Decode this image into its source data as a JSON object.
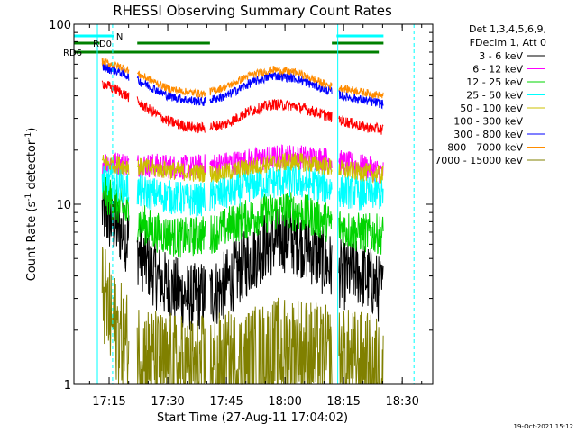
{
  "chart_data": {
    "type": "line",
    "title": "RHESSI Observing Summary Count Rates",
    "ylabel": "Count Rate (s",
    "ylabel_sup": "-1",
    "ylabel_tail": " detector",
    "ylabel_close": ")",
    "xlabel": "Start Time (27-Aug-11 17:04:02)",
    "y_scale": "log",
    "ylim": [
      1,
      100
    ],
    "xlim": [
      17.1,
      18.63
    ],
    "x_ticks": [
      {
        "t": 17.25,
        "label": "17:15"
      },
      {
        "t": 17.5,
        "label": "17:30"
      },
      {
        "t": 17.75,
        "label": "17:45"
      },
      {
        "t": 18.0,
        "label": "18:00"
      },
      {
        "t": 18.25,
        "label": "18:15"
      },
      {
        "t": 18.5,
        "label": "18:30"
      }
    ],
    "y_ticks": [
      {
        "v": 1,
        "label": "1"
      },
      {
        "v": 10,
        "label": "10"
      },
      {
        "v": 100,
        "label": "100"
      }
    ],
    "legend_header": [
      "Det 1,3,4,5,6,9,",
      "FDecim 1, Att 0"
    ],
    "legend_placement": "right",
    "series": [
      {
        "name": "3 - 6 keV",
        "color": "#000000",
        "values": [
          [
            17.22,
            9.2
          ],
          [
            17.35,
            6.0
          ],
          [
            17.48,
            3.6
          ],
          [
            17.6,
            3.0
          ],
          [
            17.72,
            3.3
          ],
          [
            17.82,
            4.5
          ],
          [
            17.92,
            6.0
          ],
          [
            18.0,
            6.5
          ],
          [
            18.08,
            6.0
          ],
          [
            18.18,
            4.6
          ],
          [
            18.25,
            4.0
          ],
          [
            18.3,
            4.3
          ],
          [
            18.36,
            3.8
          ],
          [
            18.42,
            3.2
          ]
        ]
      },
      {
        "name": "6 - 12 keV",
        "color": "#ff00ff",
        "values": [
          [
            17.22,
            17
          ],
          [
            17.4,
            16.5
          ],
          [
            17.6,
            16
          ],
          [
            17.75,
            16.8
          ],
          [
            17.85,
            17.5
          ],
          [
            18.0,
            18.5
          ],
          [
            18.15,
            18
          ],
          [
            18.25,
            17
          ],
          [
            18.35,
            16
          ],
          [
            18.42,
            15
          ]
        ]
      },
      {
        "name": "12 - 25 keV",
        "color": "#00d400",
        "values": [
          [
            17.22,
            12
          ],
          [
            17.32,
            9
          ],
          [
            17.45,
            7.0
          ],
          [
            17.55,
            6.5
          ],
          [
            17.68,
            6.8
          ],
          [
            17.78,
            7.8
          ],
          [
            17.9,
            8.8
          ],
          [
            18.0,
            9.3
          ],
          [
            18.1,
            8.7
          ],
          [
            18.2,
            7.8
          ],
          [
            18.3,
            7.0
          ],
          [
            18.42,
            6.8
          ]
        ]
      },
      {
        "name": "25 - 50 keV",
        "color": "#00ffff",
        "values": [
          [
            17.22,
            14
          ],
          [
            17.35,
            12
          ],
          [
            17.5,
            11
          ],
          [
            17.62,
            10.5
          ],
          [
            17.75,
            11.5
          ],
          [
            17.88,
            13
          ],
          [
            18.0,
            13.5
          ],
          [
            18.12,
            13
          ],
          [
            18.22,
            12
          ],
          [
            18.32,
            11.5
          ],
          [
            18.42,
            11.5
          ]
        ]
      },
      {
        "name": "50 - 100 keV",
        "color": "#ccc000",
        "values": [
          [
            17.22,
            17
          ],
          [
            17.4,
            16
          ],
          [
            17.6,
            15
          ],
          [
            17.72,
            14.8
          ],
          [
            17.82,
            15.8
          ],
          [
            17.95,
            17
          ],
          [
            18.05,
            17.3
          ],
          [
            18.15,
            16.5
          ],
          [
            18.25,
            15.5
          ],
          [
            18.35,
            15
          ],
          [
            18.42,
            14.5
          ]
        ]
      },
      {
        "name": "100 - 300 keV",
        "color": "#ff0000",
        "values": [
          [
            17.22,
            47
          ],
          [
            17.3,
            42
          ],
          [
            17.4,
            35
          ],
          [
            17.5,
            29
          ],
          [
            17.58,
            27
          ],
          [
            17.65,
            26.5
          ],
          [
            17.75,
            28
          ],
          [
            17.85,
            33
          ],
          [
            17.95,
            36
          ],
          [
            18.05,
            35
          ],
          [
            18.18,
            31
          ],
          [
            18.25,
            29
          ],
          [
            18.33,
            27
          ],
          [
            18.42,
            26
          ]
        ]
      },
      {
        "name": "300 - 800 keV",
        "color": "#0000ff",
        "values": [
          [
            17.22,
            58
          ],
          [
            17.3,
            54
          ],
          [
            17.4,
            47
          ],
          [
            17.5,
            40
          ],
          [
            17.58,
            38
          ],
          [
            17.65,
            37
          ],
          [
            17.75,
            40
          ],
          [
            17.85,
            47
          ],
          [
            17.95,
            52
          ],
          [
            18.05,
            50
          ],
          [
            18.18,
            43
          ],
          [
            18.25,
            40
          ],
          [
            18.33,
            38
          ],
          [
            18.42,
            36
          ]
        ]
      },
      {
        "name": "800 - 7000 keV",
        "color": "#ff8c00",
        "values": [
          [
            17.22,
            62
          ],
          [
            17.3,
            58
          ],
          [
            17.4,
            51
          ],
          [
            17.5,
            44
          ],
          [
            17.58,
            42
          ],
          [
            17.65,
            41
          ],
          [
            17.75,
            45
          ],
          [
            17.85,
            52
          ],
          [
            17.95,
            56
          ],
          [
            18.05,
            54
          ],
          [
            18.18,
            46
          ],
          [
            18.25,
            44
          ],
          [
            18.33,
            42
          ],
          [
            18.42,
            40
          ]
        ]
      },
      {
        "name": "7000 - 15000 keV",
        "color": "#808000",
        "values": [
          [
            17.22,
            3.3
          ],
          [
            17.26,
            2.2
          ],
          [
            17.32,
            1.7
          ],
          [
            17.45,
            1.3
          ],
          [
            17.6,
            1.2
          ],
          [
            17.8,
            1.3
          ],
          [
            17.95,
            1.5
          ],
          [
            18.05,
            1.6
          ],
          [
            18.15,
            1.4
          ],
          [
            18.3,
            1.3
          ],
          [
            18.42,
            1.2
          ]
        ]
      }
    ],
    "flags": [
      {
        "label": "N",
        "color": "#00ffff"
      },
      {
        "label": "RD0",
        "color": "#008000"
      },
      {
        "label": "RD6",
        "color": "#008000"
      }
    ],
    "footer_stamp": "19-Oct-2021 15:12"
  }
}
